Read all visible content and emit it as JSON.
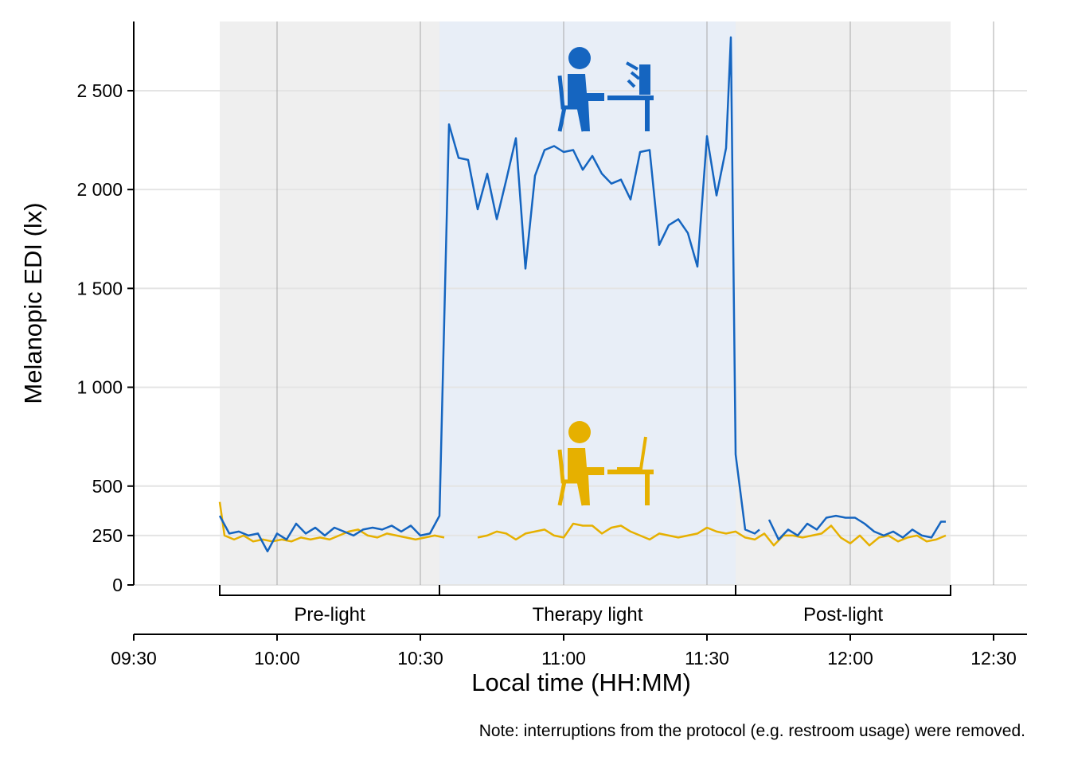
{
  "chart_data": {
    "type": "line",
    "xlabel": "Local time (HH:MM)",
    "ylabel": "Melanopic EDI (lx)",
    "note": "Note: interruptions from the protocol (e.g. restroom usage) were removed.",
    "xlim": [
      "09:30",
      "12:37"
    ],
    "xticks": [
      "09:30",
      "10:00",
      "10:30",
      "11:00",
      "11:30",
      "12:00",
      "12:30"
    ],
    "ylim": [
      0,
      2850
    ],
    "yticks": [
      0,
      250,
      500,
      {
        "value": 1000,
        "label": "1 000"
      },
      {
        "value": 1500,
        "label": "1 500"
      },
      {
        "value": 2000,
        "label": "2 000"
      },
      {
        "value": 2500,
        "label": "2 500"
      }
    ],
    "grid": true,
    "phases": [
      {
        "name": "Pre-light",
        "start": "09:48",
        "end": "10:34",
        "color": "#efefef"
      },
      {
        "name": "Therapy light",
        "start": "10:34",
        "end": "11:36",
        "color": "#e8eef7"
      },
      {
        "name": "Post-light",
        "start": "11:36",
        "end": "12:21",
        "color": "#efefef"
      }
    ],
    "series": [
      {
        "color": "#1565c0",
        "x": [
          "09:48",
          "09:50",
          "09:52",
          "09:54",
          "09:56",
          "09:58",
          "10:00",
          "10:02",
          "10:04",
          "10:06",
          "10:08",
          "10:10",
          "10:12",
          "10:14",
          "10:16",
          "10:18",
          "10:20",
          "10:22",
          "10:24",
          "10:26",
          "10:28",
          "10:30",
          "10:32",
          "10:34",
          "10:36",
          "10:38",
          "10:40",
          "10:42",
          "10:44",
          "10:46",
          "10:48",
          "10:50",
          "10:52",
          "10:54",
          "10:56",
          "10:58",
          "11:00",
          "11:02",
          "11:04",
          "11:06",
          "11:08",
          "11:10",
          "11:12",
          "11:14",
          "11:16",
          "11:18",
          "11:20",
          "11:22",
          "11:24",
          "11:26",
          "11:28",
          "11:30",
          "11:32",
          "11:34",
          "11:35",
          "11:36",
          "11:38",
          "11:40",
          "11:41",
          "11:42",
          "11:43",
          "11:45",
          "11:47",
          "11:49",
          "11:51",
          "11:53",
          "11:55",
          "11:57",
          "11:59",
          "12:01",
          "12:03",
          "12:05",
          "12:07",
          "12:09",
          "12:11",
          "12:13",
          "12:15",
          "12:17",
          "12:19",
          "12:20"
        ],
        "values": [
          350,
          260,
          270,
          250,
          260,
          170,
          260,
          230,
          310,
          260,
          290,
          250,
          290,
          270,
          250,
          280,
          290,
          280,
          300,
          270,
          300,
          250,
          260,
          350,
          2330,
          2160,
          2150,
          1900,
          2080,
          1850,
          2050,
          2260,
          1600,
          2070,
          2200,
          2220,
          2190,
          2200,
          2100,
          2170,
          2080,
          2030,
          2050,
          1950,
          2190,
          2200,
          1720,
          1820,
          1850,
          1780,
          1610,
          2270,
          1970,
          2210,
          2770,
          660,
          280,
          260,
          280,
          null,
          330,
          230,
          280,
          250,
          310,
          280,
          340,
          350,
          340,
          340,
          310,
          270,
          250,
          270,
          240,
          280,
          250,
          240,
          320,
          320
        ]
      },
      {
        "color": "#e6b000",
        "x": [
          "09:48",
          "09:49",
          "09:51",
          "09:53",
          "09:55",
          "09:57",
          "09:59",
          "10:01",
          "10:03",
          "10:05",
          "10:07",
          "10:09",
          "10:11",
          "10:13",
          "10:15",
          "10:17",
          "10:19",
          "10:21",
          "10:23",
          "10:25",
          "10:27",
          "10:29",
          "10:31",
          "10:33",
          "10:35",
          "10:38",
          "10:42",
          "10:44",
          "10:46",
          "10:48",
          "10:50",
          "10:52",
          "10:54",
          "10:56",
          "10:58",
          "11:00",
          "11:02",
          "11:04",
          "11:06",
          "11:08",
          "11:10",
          "11:12",
          "11:14",
          "11:16",
          "11:18",
          "11:20",
          "11:22",
          "11:24",
          "11:26",
          "11:28",
          "11:30",
          "11:32",
          "11:34",
          "11:36",
          "11:38",
          "11:40",
          "11:42",
          "11:44",
          "11:46",
          "11:48",
          "11:50",
          "11:52",
          "11:54",
          "11:56",
          "11:58",
          "12:00",
          "12:02",
          "12:04",
          "12:06",
          "12:08",
          "12:10",
          "12:12",
          "12:14",
          "12:16",
          "12:18",
          "12:20"
        ],
        "values": [
          420,
          250,
          230,
          250,
          220,
          230,
          220,
          230,
          220,
          240,
          230,
          240,
          230,
          250,
          270,
          280,
          250,
          240,
          260,
          250,
          240,
          230,
          240,
          250,
          240,
          null,
          240,
          250,
          270,
          260,
          230,
          260,
          270,
          280,
          250,
          240,
          310,
          300,
          300,
          260,
          290,
          300,
          270,
          250,
          230,
          260,
          250,
          240,
          250,
          260,
          290,
          270,
          260,
          270,
          240,
          230,
          260,
          200,
          250,
          250,
          240,
          250,
          260,
          300,
          240,
          210,
          250,
          200,
          240,
          250,
          220,
          240,
          250,
          220,
          230,
          250
        ]
      }
    ]
  }
}
